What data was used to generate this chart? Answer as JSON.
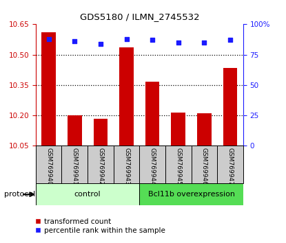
{
  "title": "GDS5180 / ILMN_2745532",
  "samples": [
    "GSM769940",
    "GSM769941",
    "GSM769942",
    "GSM769943",
    "GSM769944",
    "GSM769945",
    "GSM769946",
    "GSM769947"
  ],
  "bar_values": [
    10.61,
    10.2,
    10.185,
    10.535,
    10.365,
    10.215,
    10.21,
    10.435
  ],
  "dot_values": [
    88,
    86,
    84,
    88,
    87,
    85,
    85,
    87
  ],
  "ylim_left": [
    10.05,
    10.65
  ],
  "ylim_right": [
    0,
    100
  ],
  "yticks_left": [
    10.05,
    10.2,
    10.35,
    10.5,
    10.65
  ],
  "yticks_right": [
    0,
    25,
    50,
    75,
    100
  ],
  "ytick_labels_right": [
    "0",
    "25",
    "50",
    "75",
    "100%"
  ],
  "bar_color": "#cc0000",
  "dot_color": "#1a1aff",
  "grid_color": "#000000",
  "control_label": "control",
  "overexpress_label": "Bcl11b overexpression",
  "control_bg": "#ccffcc",
  "overexpress_bg": "#55dd55",
  "sample_bg": "#cccccc",
  "protocol_label": "protocol",
  "legend_bar": "transformed count",
  "legend_dot": "percentile rank within the sample",
  "ymin": 10.05
}
